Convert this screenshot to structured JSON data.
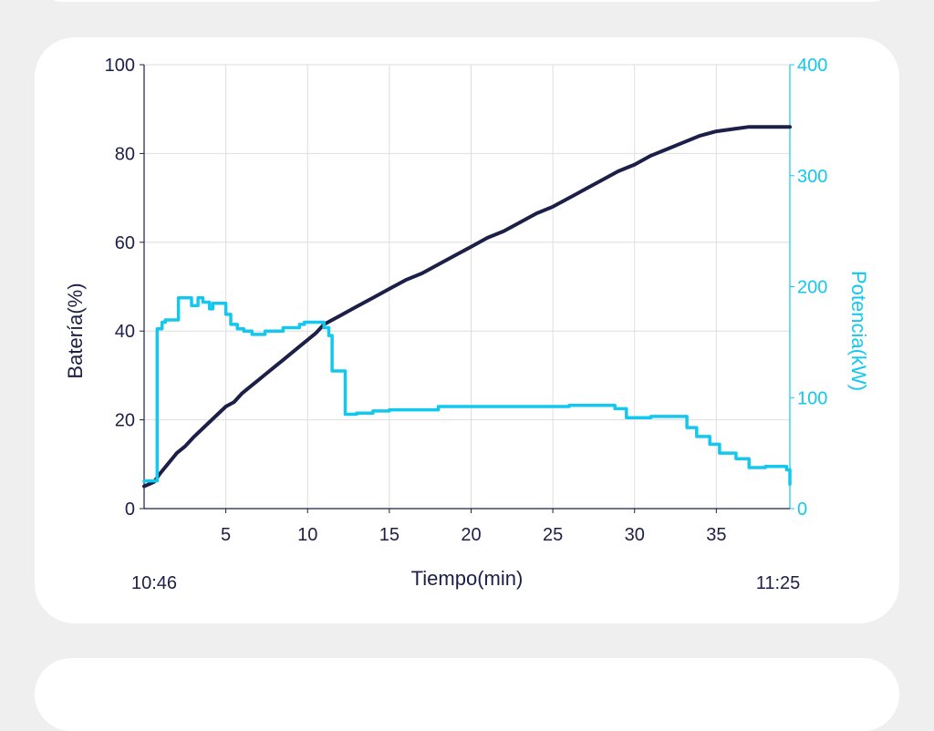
{
  "colors": {
    "battery": "#1c1f47",
    "power": "#13c8ef",
    "grid": "#dedede",
    "text_dark": "#1c1f47",
    "card": "#ffffff",
    "background": "#efefef"
  },
  "chart_data": {
    "type": "line",
    "xlabel": "Tiempo(min)",
    "ylabel_left": "Batería(%)",
    "ylabel_right": "Potencia(kW)",
    "start_time": "10:46",
    "end_time": "11:25",
    "xlim": [
      0,
      39.5
    ],
    "ylim_left": [
      0,
      100
    ],
    "ylim_right": [
      0,
      400
    ],
    "x_ticks": [
      5,
      10,
      15,
      20,
      25,
      30,
      35
    ],
    "y_ticks_left": [
      0,
      20,
      40,
      60,
      80,
      100
    ],
    "y_ticks_right": [
      0,
      100,
      200,
      300,
      400
    ],
    "grid": true,
    "series": [
      {
        "name": "Batería(%)",
        "axis": "left",
        "step": false,
        "x": [
          0,
          0.6,
          1,
          2,
          2.5,
          3,
          4,
          5,
          5.5,
          6,
          6.5,
          7,
          7.5,
          8,
          8.5,
          9,
          9.5,
          10,
          10.5,
          11,
          12,
          13,
          14,
          15,
          16,
          17,
          18,
          19,
          20,
          21,
          22,
          23,
          24,
          25,
          26,
          27,
          28,
          29,
          30,
          31,
          32,
          33,
          34,
          35,
          36,
          37,
          38,
          39.5
        ],
        "y": [
          5,
          6,
          8,
          12.5,
          14,
          16,
          19.5,
          23,
          24,
          26,
          27.5,
          29,
          30.5,
          32,
          33.5,
          35,
          36.5,
          38,
          39.5,
          41.5,
          43.5,
          45.5,
          47.5,
          49.5,
          51.5,
          53,
          55,
          57,
          59,
          61,
          62.5,
          64.5,
          66.5,
          68,
          70,
          72,
          74,
          76,
          77.5,
          79.5,
          81,
          82.5,
          84,
          85,
          85.5,
          86,
          86,
          86
        ]
      },
      {
        "name": "Potencia(kW)",
        "axis": "right",
        "step": true,
        "x": [
          0,
          0.6,
          0.8,
          1.1,
          1.3,
          2.1,
          2.4,
          2.9,
          3.3,
          3.6,
          4,
          4.2,
          4.6,
          5,
          5.3,
          5.7,
          6.1,
          6.6,
          7,
          7.4,
          7.7,
          8,
          8.5,
          9,
          9.5,
          9.8,
          10.2,
          10.6,
          11,
          11.3,
          11.5,
          11.7,
          12.1,
          12.3,
          13,
          14,
          15,
          17,
          18,
          20,
          22,
          25,
          26,
          28.3,
          28.8,
          29.5,
          30,
          31,
          32.6,
          33.2,
          33.8,
          34.6,
          35.2,
          36.2,
          37,
          38,
          38.8,
          39.3,
          39.5
        ],
        "y": [
          25,
          25,
          162,
          168,
          170,
          190,
          190,
          183,
          190,
          186,
          180,
          185,
          185,
          175,
          166,
          162,
          160,
          157,
          157,
          160,
          160,
          160,
          163,
          163,
          166,
          168,
          168,
          168,
          163,
          156,
          124,
          124,
          124,
          85,
          86,
          88,
          89,
          89,
          92,
          92,
          92,
          92,
          93,
          93,
          90,
          82,
          82,
          83,
          83,
          73,
          65,
          58,
          50,
          45,
          37,
          38,
          38,
          35,
          22
        ]
      }
    ]
  }
}
